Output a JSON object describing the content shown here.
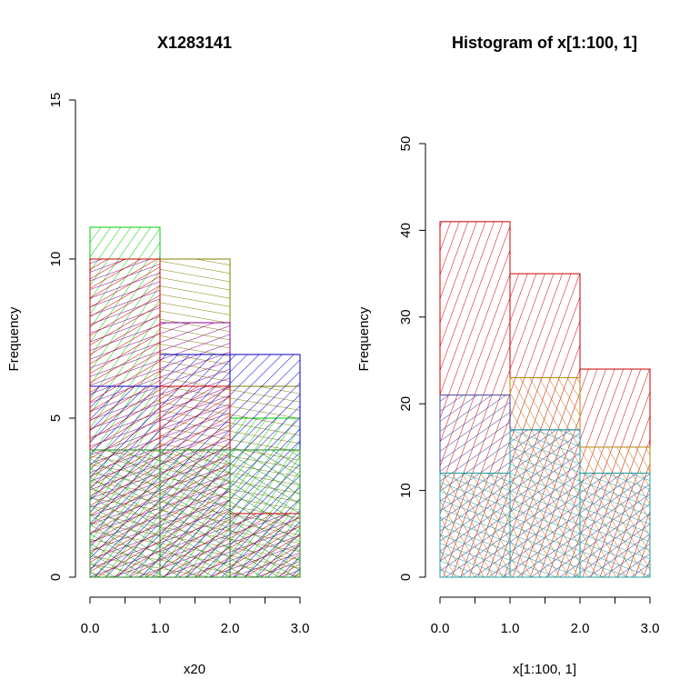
{
  "chart_data": [
    {
      "type": "bar",
      "subtype": "overlaid-histogram",
      "title": "X1283141",
      "xlabel": "x20",
      "ylabel": "Frequency",
      "xlim": [
        0,
        3
      ],
      "ylim": [
        0,
        15
      ],
      "x_ticks": [
        0,
        0.5,
        1,
        1.5,
        2,
        2.5,
        3
      ],
      "x_tick_labels": [
        "0.0",
        "",
        "1.0",
        "",
        "2.0",
        "",
        "3.0"
      ],
      "y_ticks": [
        0,
        5,
        10,
        15
      ],
      "y_tick_labels": [
        "0",
        "5",
        "10",
        "15"
      ],
      "grid": false,
      "legend": "none",
      "bins": [
        [
          0,
          1
        ],
        [
          1,
          2
        ],
        [
          2,
          3
        ]
      ],
      "series": [
        {
          "color": "#00cc00",
          "hatch_angle": 35,
          "values": [
            11,
            4,
            5
          ]
        },
        {
          "color": "#808000",
          "hatch_angle": 100,
          "values": [
            4,
            10,
            6
          ]
        },
        {
          "color": "#8b008b",
          "hatch_angle": 70,
          "values": [
            10,
            8,
            2
          ]
        },
        {
          "color": "#0000cd",
          "hatch_angle": 45,
          "values": [
            6,
            7,
            7
          ]
        },
        {
          "color": "#cc0000",
          "hatch_angle": 60,
          "values": [
            10,
            6,
            2
          ]
        },
        {
          "color": "#228b22",
          "hatch_angle": 120,
          "values": [
            4,
            4,
            4
          ]
        }
      ]
    },
    {
      "type": "bar",
      "subtype": "overlaid-histogram",
      "title": "Histogram of x[1:100, 1]",
      "xlabel": "x[1:100, 1]",
      "ylabel": "Frequency",
      "xlim": [
        0,
        3
      ],
      "ylim": [
        0,
        50
      ],
      "x_ticks": [
        0,
        0.5,
        1,
        1.5,
        2,
        2.5,
        3
      ],
      "x_tick_labels": [
        "0.0",
        "",
        "1.0",
        "",
        "2.0",
        "",
        "3.0"
      ],
      "y_ticks": [
        0,
        10,
        20,
        30,
        40,
        50
      ],
      "y_tick_labels": [
        "0",
        "10",
        "20",
        "30",
        "40",
        "50"
      ],
      "grid": false,
      "legend": "none",
      "bins": [
        [
          0,
          1
        ],
        [
          1,
          2
        ],
        [
          2,
          3
        ]
      ],
      "series": [
        {
          "color": "#cc0000",
          "hatch_angle": 20,
          "values": [
            41,
            35,
            24
          ]
        },
        {
          "color": "#b8860b",
          "hatch_angle": 150,
          "values": [
            12,
            23,
            15
          ]
        },
        {
          "color": "#4040a0",
          "hatch_angle": 55,
          "values": [
            21,
            17,
            12
          ]
        },
        {
          "color": "#20a0a0",
          "hatch_angle": 110,
          "values": [
            12,
            17,
            12
          ]
        }
      ]
    }
  ]
}
